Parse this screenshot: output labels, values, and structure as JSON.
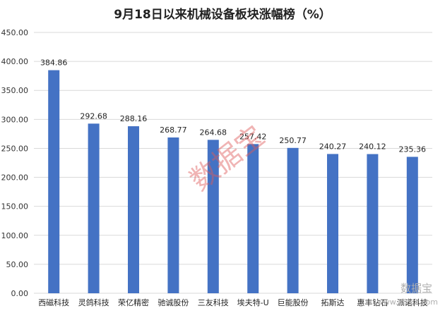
{
  "chart_data": {
    "type": "bar",
    "title": "9月18日以来机械设备板块涨幅榜（%）",
    "categories": [
      "西磁科技",
      "灵鸽科技",
      "荣亿精密",
      "驰诚股份",
      "三友科技",
      "埃夫特-U",
      "巨能股份",
      "拓斯达",
      "惠丰钻石",
      "派诺科技"
    ],
    "values": [
      384.86,
      292.68,
      288.16,
      268.77,
      264.68,
      257.42,
      250.77,
      240.27,
      240.12,
      235.36
    ],
    "data_labels": [
      "384.86",
      "292.68",
      "288.16",
      "268.77",
      "264.68",
      "257.42",
      "250.77",
      "240.27",
      "240.12",
      "235.36"
    ],
    "y_ticks": [
      "0.00",
      "50.00",
      "100.00",
      "150.00",
      "200.00",
      "250.00",
      "300.00",
      "350.00",
      "400.00",
      "450.00"
    ],
    "ylim": [
      0,
      450
    ],
    "xlabel": "",
    "ylabel": "",
    "grid": true,
    "legend": "none",
    "bar_color": "#4472c4"
  },
  "watermark": "数据宝",
  "corner_watermark": "数据宝",
  "corner_url": "www.365jz.com"
}
